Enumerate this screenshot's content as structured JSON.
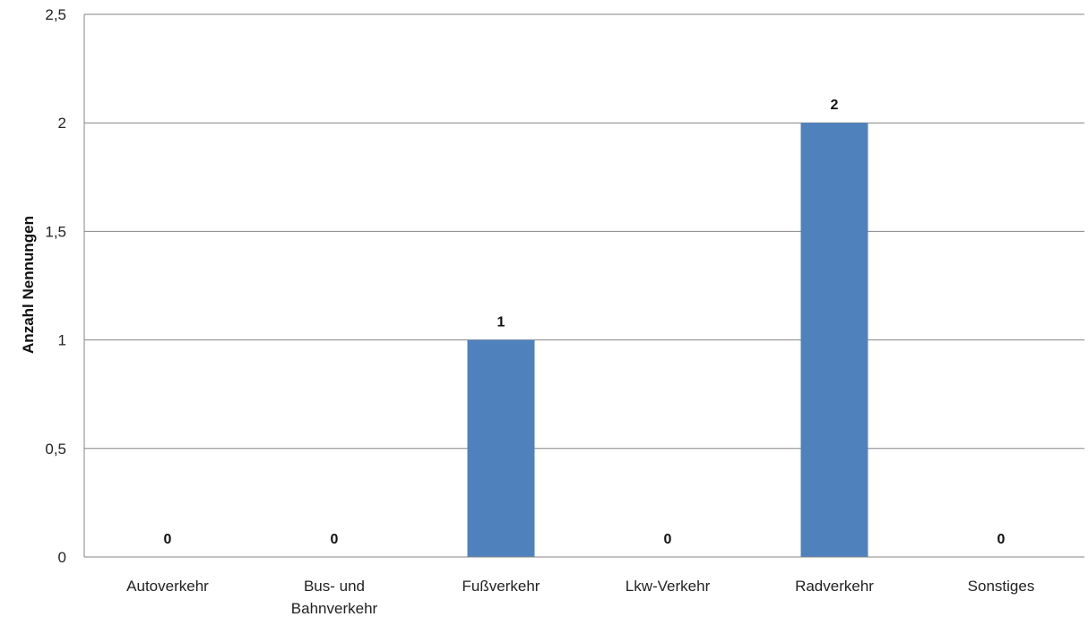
{
  "chart_data": {
    "type": "bar",
    "title": "",
    "xlabel": "",
    "ylabel": "Anzahl Nennungen",
    "categories": [
      "Autoverkehr",
      "Bus- und Bahnverkehr",
      "Fußverkehr",
      "Lkw-Verkehr",
      "Radverkehr",
      "Sonstiges"
    ],
    "category_label_lines": [
      [
        "Autoverkehr"
      ],
      [
        "Bus- und",
        "Bahnverkehr"
      ],
      [
        "Fußverkehr"
      ],
      [
        "Lkw-Verkehr"
      ],
      [
        "Radverkehr"
      ],
      [
        "Sonstiges"
      ]
    ],
    "values": [
      0,
      0,
      1,
      0,
      2,
      0
    ],
    "data_labels": [
      "0",
      "0",
      "1",
      "0",
      "2",
      "0"
    ],
    "ylim": [
      0,
      2.5
    ],
    "yticks": [
      0,
      0.5,
      1,
      1.5,
      2,
      2.5
    ],
    "ytick_labels": [
      "0",
      "0,5",
      "1",
      "1,5",
      "2",
      "2,5"
    ],
    "grid": true,
    "legend": "none",
    "colors": {
      "bar": "#4f81bd",
      "grid": "#868686",
      "axis": "#868686"
    }
  }
}
